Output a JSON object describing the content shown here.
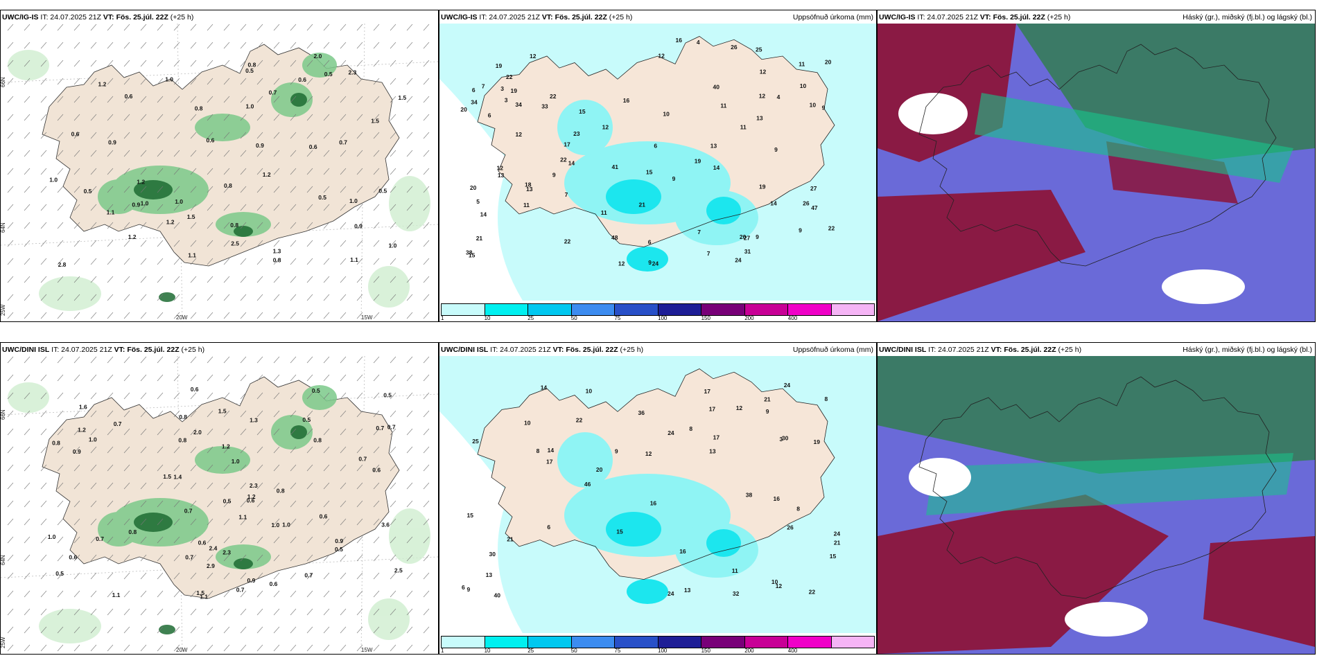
{
  "rows": [
    {
      "model": "UWC/IG-IS",
      "it": "IT: 24.07.2025 21Z",
      "vt": "VT: Fös. 25.júl. 22Z",
      "lead": "(+25 h)",
      "wind_labels": [
        "0.9",
        "0.6",
        "1.0",
        "0.6",
        "1.0",
        "0.7",
        "2.0",
        "0.8",
        "2.5",
        "0.8",
        "1.0",
        "0.9",
        "1.2",
        "1.5",
        "2.3",
        "1.0",
        "0.8",
        "1.2",
        "1.5",
        "0.6",
        "0.9",
        "1.0",
        "2.8",
        "0.7",
        "0.5",
        "0.6",
        "0.5",
        "1.2",
        "1.5",
        "1.1",
        "1.2",
        "0.5",
        "1.0",
        "1.1",
        "0.8",
        "0.5",
        "1.3",
        "1.0",
        "0.9",
        "1.2",
        "0.5",
        "1.1",
        "0.8",
        "0.6"
      ],
      "precip_labels": [
        "22",
        "3",
        "11",
        "10",
        "13",
        "12",
        "20",
        "7",
        "9",
        "27",
        "34",
        "26",
        "13",
        "12",
        "10",
        "9",
        "11",
        "14",
        "26",
        "22",
        "33",
        "40",
        "11",
        "6",
        "19",
        "31",
        "12",
        "13",
        "15",
        "7",
        "20",
        "22",
        "24",
        "12",
        "9",
        "24",
        "22",
        "10",
        "19",
        "21",
        "11",
        "6",
        "13",
        "12",
        "14",
        "12",
        "34",
        "38",
        "16",
        "41",
        "12",
        "25",
        "9",
        "14",
        "19",
        "47",
        "15",
        "11",
        "7",
        "14",
        "16",
        "23",
        "22",
        "27",
        "21",
        "12",
        "9",
        "48",
        "18",
        "20",
        "4",
        "9",
        "6",
        "3",
        "4",
        "17",
        "9",
        "5",
        "19",
        "20",
        "15",
        "6",
        "7"
      ]
    },
    {
      "model": "UWC/DINI ISL",
      "it": "IT: 24.07.2025 21Z",
      "vt": "VT: Fös. 25.júl. 22Z",
      "lead": "(+25 h)",
      "wind_labels": [
        "0.8",
        "0.6",
        "1.4",
        "1.5",
        "3.6",
        "0.7",
        "1.2",
        "0.6",
        "2.3",
        "0.9",
        "0.8",
        "0.6",
        "0.9",
        "0.7",
        "0.5",
        "1.0",
        "0.7",
        "2.9",
        "0.7",
        "0.5",
        "1.0",
        "1.2",
        "1.6",
        "0.9",
        "0.6",
        "0.7",
        "1.3",
        "0.7",
        "1.1",
        "0.6",
        "1.0",
        "0.6",
        "0.5",
        "0.7",
        "1.1",
        "0.7",
        "0.5",
        "0.5",
        "2.4",
        "1.1",
        "1.5",
        "2.0",
        "1.2",
        "2.3",
        "1.5",
        "0.5",
        "0.8",
        "2.5",
        "0.8",
        "0.8",
        "1.0",
        "0.7",
        "0.6",
        "1.0",
        "0.8"
      ],
      "precip_labels": [
        "10",
        "8",
        "8",
        "6",
        "9",
        "13",
        "16",
        "26",
        "24",
        "30",
        "8",
        "14",
        "12",
        "21",
        "14",
        "17",
        "16",
        "24",
        "12",
        "10",
        "15",
        "17",
        "13",
        "19",
        "17",
        "9",
        "6",
        "22",
        "24",
        "16",
        "13",
        "20",
        "36",
        "22",
        "38",
        "40",
        "24",
        "25",
        "32",
        "17",
        "15",
        "21",
        "46",
        "30",
        "12",
        "10",
        "9",
        "11",
        "15",
        "21",
        "3",
        "8"
      ]
    }
  ],
  "precip_header": "Uppsöfnuð úrkoma (mm)",
  "cloud_header": "Háský (gr.), miðský (fj.bl.) og lágský (bl.)",
  "colorbar": {
    "ticks": [
      "1",
      "10",
      "25",
      "50",
      "75",
      "100",
      "150",
      "200",
      "400"
    ],
    "colors": [
      "#c8fbfb",
      "#00f0f0",
      "#00c8f0",
      "#3c8cf0",
      "#2850c8",
      "#1e1e96",
      "#780078",
      "#c80096",
      "#f000c8",
      "#f5b4f5"
    ]
  },
  "axis_labels": {
    "lat66": "66N",
    "lat64": "64N",
    "lon25": "25W",
    "lon20": "20W",
    "lon15": "15W"
  }
}
